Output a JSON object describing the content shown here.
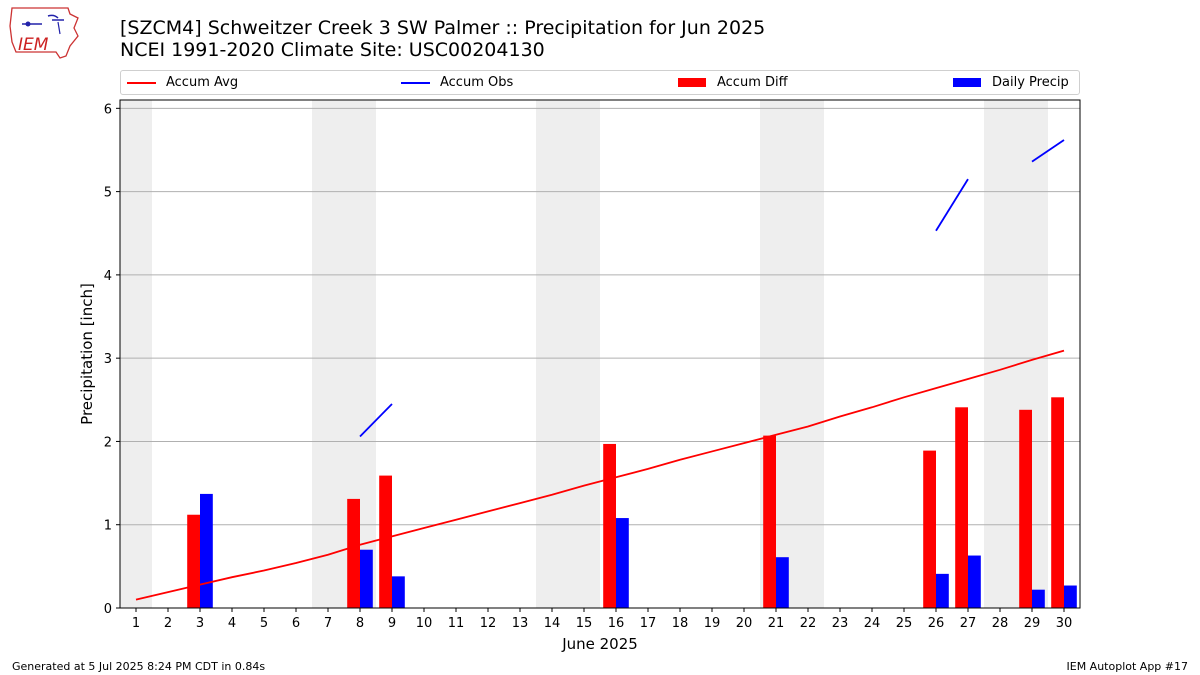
{
  "header": {
    "title_line1": "[SZCM4] Schweitzer Creek 3 SW Palmer :: Precipitation for Jun 2025",
    "title_line2": "NCEI 1991-2020 Climate Site: USC00204130",
    "logo_text": "IEM"
  },
  "footer": {
    "left": "Generated at 5 Jul 2025 8:24 PM CDT in 0.84s",
    "right": "IEM Autoplot App #17"
  },
  "colors": {
    "accum_avg": "#ff0000",
    "accum_obs": "#0000ff",
    "accum_diff": "#ff0000",
    "daily_precip": "#0000ff",
    "weekend_shading": "#eeeeee",
    "grid": "#b0b0b0"
  },
  "chart_data": {
    "type": "bar",
    "xlabel": "June 2025",
    "ylabel": "Precipitation [inch]",
    "xlim": [
      0.5,
      30.5
    ],
    "ylim": [
      0,
      6.1
    ],
    "grid": "horizontal",
    "legend_placement": "top",
    "x": [
      1,
      2,
      3,
      4,
      5,
      6,
      7,
      8,
      9,
      10,
      11,
      12,
      13,
      14,
      15,
      16,
      17,
      18,
      19,
      20,
      21,
      22,
      23,
      24,
      25,
      26,
      27,
      28,
      29,
      30
    ],
    "x_tick_labels": [
      "1",
      "2",
      "3",
      "4",
      "5",
      "6",
      "7",
      "8",
      "9",
      "10",
      "11",
      "12",
      "13",
      "14",
      "15",
      "16",
      "17",
      "18",
      "19",
      "20",
      "21",
      "22",
      "23",
      "24",
      "25",
      "26",
      "27",
      "28",
      "29",
      "30"
    ],
    "y_ticks": [
      0,
      1,
      2,
      3,
      4,
      5,
      6
    ],
    "y_tick_labels": [
      "0",
      "1",
      "2",
      "3",
      "4",
      "5",
      "6"
    ],
    "weekend_days": [
      1,
      7,
      8,
      14,
      15,
      21,
      22,
      28,
      29
    ],
    "series": [
      {
        "name": "Accum Avg",
        "kind": "line",
        "values": [
          0.1,
          0.19,
          0.28,
          0.37,
          0.45,
          0.54,
          0.64,
          0.76,
          0.86,
          0.96,
          1.06,
          1.16,
          1.26,
          1.36,
          1.47,
          1.57,
          1.67,
          1.78,
          1.88,
          1.98,
          2.08,
          2.18,
          2.3,
          2.41,
          2.53,
          2.64,
          2.75,
          2.86,
          2.98,
          3.09
        ]
      },
      {
        "name": "Accum Obs",
        "kind": "line",
        "values": [
          null,
          null,
          null,
          null,
          null,
          null,
          null,
          2.06,
          2.45,
          null,
          null,
          null,
          null,
          null,
          null,
          null,
          null,
          null,
          null,
          null,
          null,
          null,
          null,
          null,
          null,
          4.53,
          5.15,
          null,
          5.36,
          5.62
        ]
      },
      {
        "name": "Accum Diff",
        "kind": "bar",
        "values": [
          0,
          0,
          1.12,
          0,
          0,
          0,
          0,
          1.31,
          1.59,
          0,
          0,
          0,
          0,
          0,
          0,
          1.97,
          0,
          0,
          0,
          0,
          2.07,
          0,
          0,
          0,
          0,
          1.89,
          2.41,
          0,
          2.38,
          2.53
        ]
      },
      {
        "name": "Daily Precip",
        "kind": "bar",
        "values": [
          0,
          0,
          1.37,
          0,
          0,
          0,
          0,
          0.7,
          0.38,
          0,
          0,
          0,
          0,
          0,
          0,
          1.08,
          0,
          0,
          0,
          0,
          0.61,
          0,
          0,
          0,
          0,
          0.41,
          0.63,
          0,
          0.22,
          0.27
        ]
      }
    ]
  }
}
